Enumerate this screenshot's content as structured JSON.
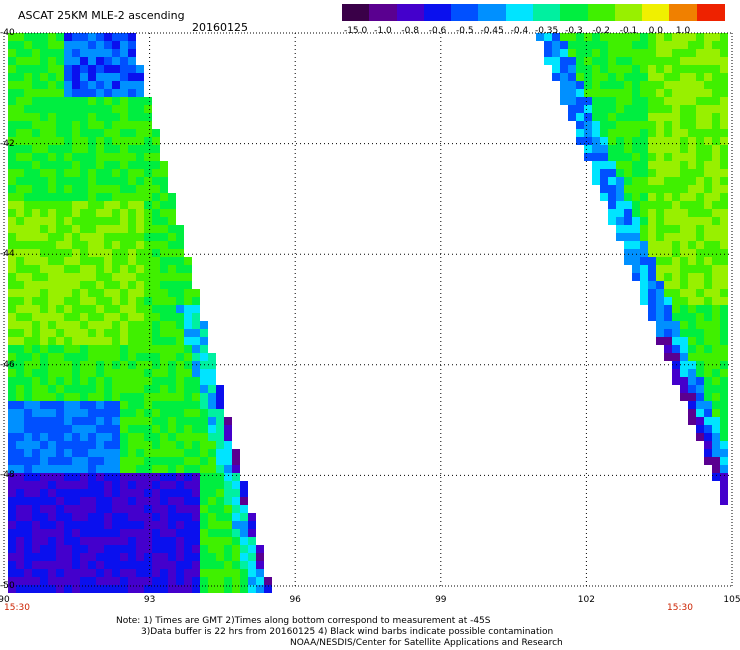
{
  "header": {
    "title": "ASCAT 25KM MLE-2 ascending",
    "date": "20160125"
  },
  "colorbar": {
    "labels": [
      "-15.0",
      "-1.0",
      "-0.8",
      "-0.6",
      "-0.5",
      "-0.45",
      "-0.4",
      "-0.35",
      "-0.3",
      "-0.2",
      "-0.1",
      "0.0",
      "1.0"
    ],
    "colors": [
      "#3a0048",
      "#5a0090",
      "#4400cc",
      "#0a10ee",
      "#0050ff",
      "#0090ff",
      "#00e4ff",
      "#00f0a0",
      "#00ee40",
      "#40f000",
      "#98f000",
      "#f0f000",
      "#f08000",
      "#ee2200"
    ]
  },
  "map": {
    "lat_labels": [
      "-40",
      "-42",
      "-44",
      "-46",
      "-48",
      "-50"
    ],
    "lon_labels": [
      "90",
      "93",
      "96",
      "99",
      "102",
      "105"
    ],
    "lat_range": [
      -50,
      -40
    ],
    "lon_range": [
      90,
      105
    ],
    "grid": true,
    "swath_times": [
      "15:30",
      "15:30"
    ]
  },
  "notes": {
    "line1": "Note: 1) Times are GMT 2)Times along bottom correspond to measurement at -45S",
    "line2": "3)Data buffer is 22 hrs from 20160125 4) Black wind barbs indicate possible contamination",
    "line3": "NOAA/NESDIS/Center for Satellite Applications and Research"
  }
}
